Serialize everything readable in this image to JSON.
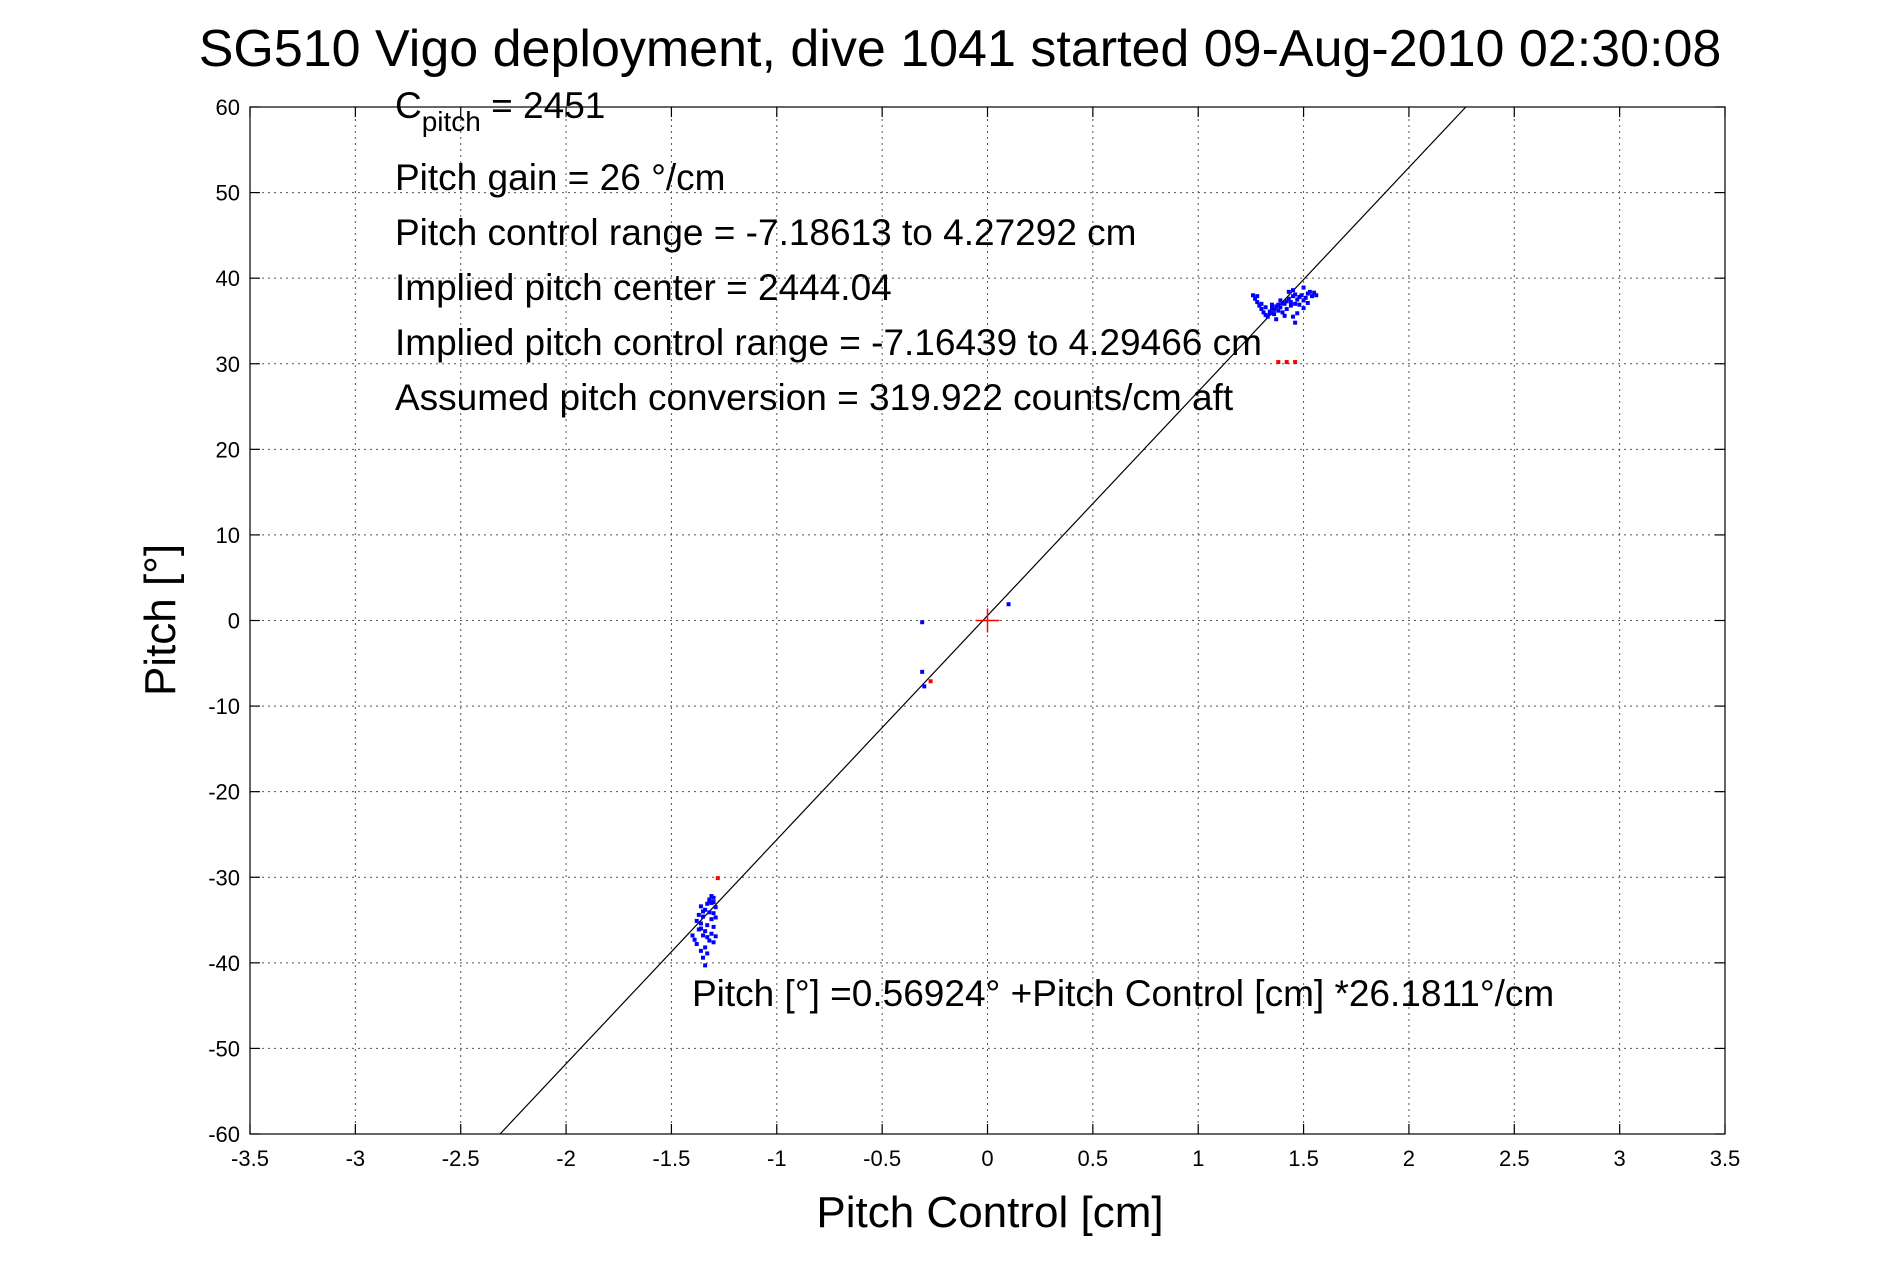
{
  "chart_data": {
    "type": "scatter",
    "title": "SG510 Vigo deployment, dive 1041 started 09-Aug-2010 02:30:08",
    "xlabel": "Pitch Control [cm]",
    "ylabel": "Pitch [°]",
    "xlim": [
      -3.5,
      3.5
    ],
    "ylim": [
      -60,
      60
    ],
    "grid": true,
    "x_ticks": [
      -3.5,
      -3,
      -2.5,
      -2,
      -1.5,
      -1,
      -0.5,
      0,
      0.5,
      1,
      1.5,
      2,
      2.5,
      3,
      3.5
    ],
    "y_ticks": [
      -60,
      -50,
      -40,
      -30,
      -20,
      -10,
      0,
      10,
      20,
      30,
      40,
      50,
      60
    ],
    "x_tick_labels": [
      "-3.5",
      "-3",
      "-2.5",
      "-2",
      "-1.5",
      "-1",
      "-0.5",
      "0",
      "0.5",
      "1",
      "1.5",
      "2",
      "2.5",
      "3",
      "3.5"
    ],
    "y_tick_labels": [
      "-60",
      "-50",
      "-40",
      "-30",
      "-20",
      "-10",
      "0",
      "10",
      "20",
      "30",
      "40",
      "50",
      "60"
    ],
    "annotations": {
      "cpitch_base": "C",
      "cpitch_sub": "pitch",
      "cpitch_value": " = 2451",
      "gain": "Pitch gain = 26 °/cm",
      "control_range": "Pitch control range = -7.18613 to 4.27292 cm",
      "implied_center": "Implied pitch center = 2444.04",
      "implied_range": "Implied pitch control range = -7.16439 to 4.29466 cm",
      "conversion": "Assumed pitch conversion = 319.922 counts/cm aft",
      "fit_equation": "Pitch [°] =0.56924° +Pitch Control [cm] *26.1811°/cm"
    },
    "fit_line": {
      "intercept": 0.56924,
      "slope": 26.1811
    },
    "center_marker": {
      "x": 0,
      "y": 0,
      "color": "#ff0000"
    },
    "series": [
      {
        "color": "#0000ff",
        "points": [
          [
            1.26,
            38.0
          ],
          [
            1.27,
            37.6
          ],
          [
            1.28,
            37.2
          ],
          [
            1.29,
            36.8
          ],
          [
            1.3,
            36.4
          ],
          [
            1.31,
            36.0
          ],
          [
            1.32,
            35.7
          ],
          [
            1.33,
            35.5
          ],
          [
            1.34,
            36.1
          ],
          [
            1.35,
            36.5
          ],
          [
            1.36,
            36.3
          ],
          [
            1.37,
            36.7
          ],
          [
            1.38,
            36.9
          ],
          [
            1.39,
            36.6
          ],
          [
            1.4,
            37.1
          ],
          [
            1.41,
            37.0
          ],
          [
            1.42,
            37.3
          ],
          [
            1.43,
            37.6
          ],
          [
            1.44,
            37.2
          ],
          [
            1.45,
            37.9
          ],
          [
            1.46,
            38.1
          ],
          [
            1.47,
            37.5
          ],
          [
            1.48,
            37.8
          ],
          [
            1.49,
            38.0
          ],
          [
            1.5,
            37.4
          ],
          [
            1.51,
            37.7
          ],
          [
            1.52,
            38.2
          ],
          [
            1.53,
            38.4
          ],
          [
            1.54,
            37.9
          ],
          [
            1.55,
            38.3
          ],
          [
            1.56,
            38.0
          ],
          [
            1.28,
            37.9
          ],
          [
            1.3,
            37.0
          ],
          [
            1.32,
            36.6
          ],
          [
            1.34,
            35.9
          ],
          [
            1.36,
            35.8
          ],
          [
            1.38,
            36.2
          ],
          [
            1.4,
            36.0
          ],
          [
            1.42,
            36.4
          ],
          [
            1.44,
            36.8
          ],
          [
            1.46,
            37.0
          ],
          [
            1.48,
            36.9
          ],
          [
            1.5,
            36.5
          ],
          [
            1.46,
            34.8
          ],
          [
            1.45,
            35.5
          ],
          [
            1.47,
            35.9
          ],
          [
            1.43,
            38.4
          ],
          [
            1.45,
            38.6
          ],
          [
            1.5,
            38.9
          ],
          [
            1.35,
            36.9
          ],
          [
            1.37,
            35.2
          ],
          [
            1.41,
            35.6
          ],
          [
            1.39,
            37.4
          ],
          [
            1.52,
            37.1
          ],
          [
            -1.4,
            -36.8
          ],
          [
            -1.39,
            -37.3
          ],
          [
            -1.38,
            -37.8
          ],
          [
            -1.37,
            -36.1
          ],
          [
            -1.36,
            -35.4
          ],
          [
            -1.35,
            -34.6
          ],
          [
            -1.34,
            -33.8
          ],
          [
            -1.33,
            -33.1
          ],
          [
            -1.32,
            -32.6
          ],
          [
            -1.31,
            -32.2
          ],
          [
            -1.3,
            -32.9
          ],
          [
            -1.29,
            -33.5
          ],
          [
            -1.36,
            -38.6
          ],
          [
            -1.35,
            -39.4
          ],
          [
            -1.34,
            -40.3
          ],
          [
            -1.33,
            -38.9
          ],
          [
            -1.32,
            -37.4
          ],
          [
            -1.31,
            -36.6
          ],
          [
            -1.3,
            -35.8
          ],
          [
            -1.29,
            -36.9
          ],
          [
            -1.3,
            -37.6
          ],
          [
            -1.31,
            -34.9
          ],
          [
            -1.32,
            -34.1
          ],
          [
            -1.33,
            -35.6
          ],
          [
            -1.34,
            -36.3
          ],
          [
            -1.35,
            -36.8
          ],
          [
            -1.37,
            -34.4
          ],
          [
            -1.36,
            -33.4
          ],
          [
            -1.38,
            -35.1
          ],
          [
            -1.3,
            -34.2
          ],
          [
            -1.31,
            -33.0
          ],
          [
            -1.32,
            -32.8
          ],
          [
            -1.29,
            -34.7
          ],
          [
            -1.33,
            -37.0
          ],
          [
            -1.34,
            -38.2
          ],
          [
            -1.35,
            -34.0
          ],
          [
            -1.3,
            -32.4
          ],
          [
            -1.36,
            -36.0
          ],
          [
            -0.31,
            -0.2
          ],
          [
            -0.31,
            -6.0
          ],
          [
            -0.3,
            -7.7
          ],
          [
            0.1,
            1.9
          ]
        ]
      },
      {
        "color": "#ff0000",
        "points": [
          [
            -1.28,
            -30.1
          ],
          [
            -0.27,
            -7.1
          ],
          [
            1.38,
            30.2
          ],
          [
            1.42,
            30.2
          ],
          [
            1.46,
            30.2
          ]
        ]
      }
    ]
  }
}
